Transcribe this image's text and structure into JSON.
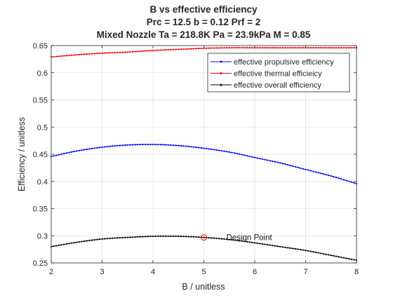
{
  "chart_data": {
    "type": "line",
    "title_lines": [
      "B vs effective efficiency",
      "Prc = 12.5 b = 0.12 Prf = 2",
      "Mixed Nozzle Ta = 218.8K Pa = 23.9kPa M = 0.85"
    ],
    "xlabel": "B / unitless",
    "ylabel": "Efficiency / unitless",
    "xlim": [
      2,
      8
    ],
    "ylim": [
      0.25,
      0.65
    ],
    "xticks": [
      "2",
      "3",
      "4",
      "5",
      "6",
      "7",
      "8"
    ],
    "yticks": [
      "0.25",
      "0.3",
      "0.35",
      "0.4",
      "0.45",
      "0.5",
      "0.55",
      "0.6",
      "0.65"
    ],
    "grid": true,
    "legend_position": "top-right",
    "x": [
      2.0,
      2.5,
      3.0,
      3.5,
      4.0,
      4.5,
      5.0,
      5.5,
      6.0,
      6.5,
      7.0,
      7.5,
      8.0
    ],
    "series": [
      {
        "name": "effective propulsive efficiency",
        "color": "#0000ff",
        "marker": "dot",
        "values": [
          0.446,
          0.456,
          0.463,
          0.467,
          0.468,
          0.466,
          0.461,
          0.454,
          0.444,
          0.434,
          0.422,
          0.41,
          0.396
        ]
      },
      {
        "name": "effective thermal efficieicy",
        "color": "#ff0000",
        "marker": "dot",
        "values": [
          0.629,
          0.633,
          0.636,
          0.638,
          0.641,
          0.643,
          0.645,
          0.646,
          0.646,
          0.646,
          0.646,
          0.646,
          0.646
        ]
      },
      {
        "name": "effective overall efficiency",
        "color": "#000000",
        "marker": "dot",
        "values": [
          0.28,
          0.288,
          0.294,
          0.297,
          0.299,
          0.299,
          0.297,
          0.293,
          0.287,
          0.28,
          0.273,
          0.264,
          0.255
        ]
      }
    ],
    "annotations": [
      {
        "text": "Design Point",
        "x": 5.0,
        "y": 0.297,
        "marker": "circle",
        "color": "#ff0000"
      }
    ]
  }
}
